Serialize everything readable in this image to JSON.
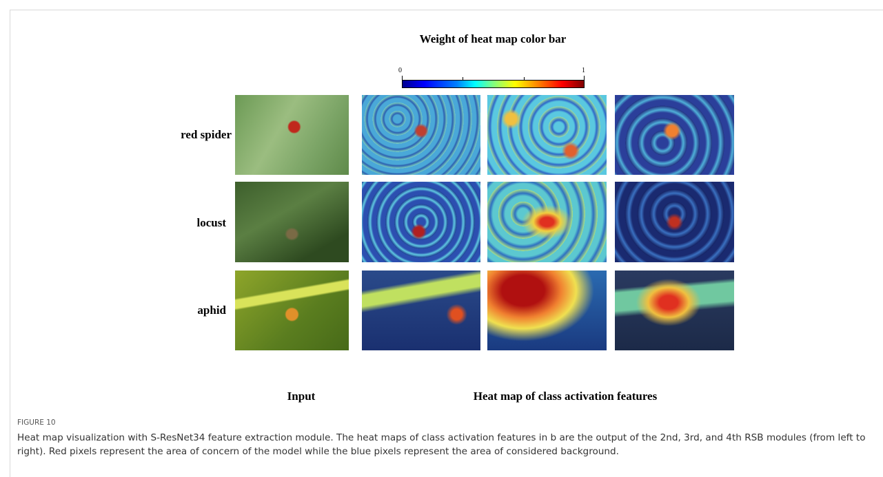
{
  "figure": {
    "colorbar": {
      "title": "Weight of heat map color bar",
      "ticks": [
        0,
        1
      ]
    },
    "rows": [
      "red spider",
      "locust",
      "aphid"
    ],
    "columns": [
      "Input",
      "Heat map of class activation features"
    ],
    "label": "FIGURE 10",
    "caption": "Heat map visualization with S-ResNet34 feature extraction module. The heat maps of class activation features in b are the output of the 2nd, 3rd, and 4th RSB modules (from left to right). Red pixels represent the area of concern of the model while the blue pixels represent the area of considered background."
  }
}
